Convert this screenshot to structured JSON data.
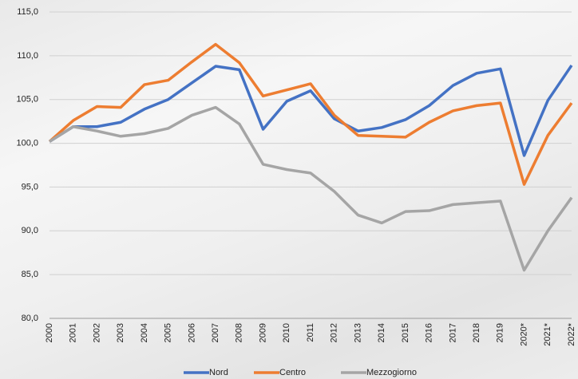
{
  "chart_data": {
    "type": "line",
    "categories": [
      "2000",
      "2001",
      "2002",
      "2003",
      "2004",
      "2005",
      "2006",
      "2007",
      "2008",
      "2009",
      "2010",
      "2011",
      "2012",
      "2013",
      "2014",
      "2015",
      "2016",
      "2017",
      "2018",
      "2019",
      "2020*",
      "2021*",
      "2022*"
    ],
    "series": [
      {
        "name": "Nord",
        "color": "#4472c4",
        "values": [
          100.2,
          101.9,
          101.9,
          102.4,
          103.9,
          105.0,
          106.9,
          108.8,
          108.4,
          101.6,
          104.8,
          106.0,
          102.8,
          101.4,
          101.8,
          102.7,
          104.3,
          106.6,
          108.0,
          108.5,
          98.6,
          104.9,
          108.9
        ]
      },
      {
        "name": "Centro",
        "color": "#ed7d31",
        "values": [
          100.2,
          102.6,
          104.2,
          104.1,
          106.7,
          107.2,
          109.3,
          111.3,
          109.2,
          105.4,
          106.1,
          106.8,
          103.2,
          100.9,
          100.8,
          100.7,
          102.4,
          103.7,
          104.3,
          104.6,
          95.3,
          100.9,
          104.6
        ]
      },
      {
        "name": "Mezzogiorno",
        "color": "#a5a5a5",
        "values": [
          100.2,
          101.9,
          101.4,
          100.8,
          101.1,
          101.7,
          103.2,
          104.1,
          102.2,
          97.6,
          97.0,
          96.6,
          94.5,
          91.8,
          90.9,
          92.2,
          92.3,
          93.0,
          93.2,
          93.4,
          85.5,
          90.0,
          93.8
        ]
      }
    ],
    "ylim": [
      80,
      115
    ],
    "yticks": [
      {
        "value": 80,
        "label": "80,0"
      },
      {
        "value": 85,
        "label": "85,0"
      },
      {
        "value": 90,
        "label": "90,0"
      },
      {
        "value": 95,
        "label": "95,0"
      },
      {
        "value": 100,
        "label": "100,0"
      },
      {
        "value": 105,
        "label": "105,0"
      },
      {
        "value": 110,
        "label": "110,0"
      },
      {
        "value": 115,
        "label": "115,0"
      }
    ],
    "grid": true,
    "legend": "bottom"
  }
}
